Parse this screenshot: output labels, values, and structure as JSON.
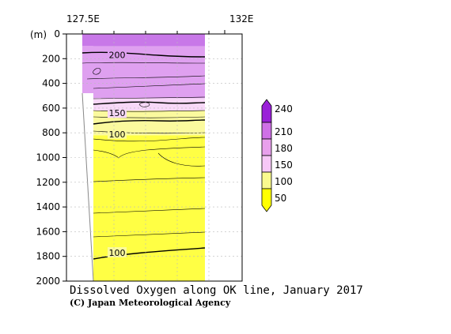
{
  "chart_data": {
    "type": "heatmap",
    "title": "Dissolved Oxygen along OK line, January 2017",
    "credit": "(C) Japan Meteorological Agency",
    "x_ticks": [
      "127.5E",
      "132E"
    ],
    "y_unit": "(m)",
    "y_ticks": [
      0,
      200,
      400,
      600,
      800,
      1000,
      1200,
      1400,
      1600,
      1800,
      2000
    ],
    "ylim": [
      0,
      2000
    ],
    "grid": true,
    "colorbar": {
      "levels": [
        50,
        100,
        150,
        180,
        210,
        240
      ],
      "labels": [
        "240",
        "210",
        "180",
        "150",
        "100",
        "50"
      ],
      "colors": [
        "#ffff00",
        "#fafa8e",
        "#f7c8f7",
        "#e8a0ec",
        "#cf70e6",
        "#9a20d8"
      ]
    },
    "bands": [
      {
        "depth_top": 0,
        "depth_bottom": 100,
        "fill": "#c878e8"
      },
      {
        "depth_top": 100,
        "depth_bottom": 520,
        "fill": "#dfa0f0"
      },
      {
        "depth_top": 520,
        "depth_bottom": 620,
        "fill": "#f8d8f8"
      },
      {
        "depth_top": 620,
        "depth_bottom": 820,
        "fill": "#fbfa9e"
      },
      {
        "depth_top": 820,
        "depth_bottom": 2000,
        "fill": "#ffff44"
      }
    ],
    "contour_labels": [
      {
        "value": "200",
        "depth": 170
      },
      {
        "value": "150",
        "depth": 640
      },
      {
        "value": "100",
        "depth": 810
      },
      {
        "value": "100",
        "depth": 1770
      }
    ]
  }
}
